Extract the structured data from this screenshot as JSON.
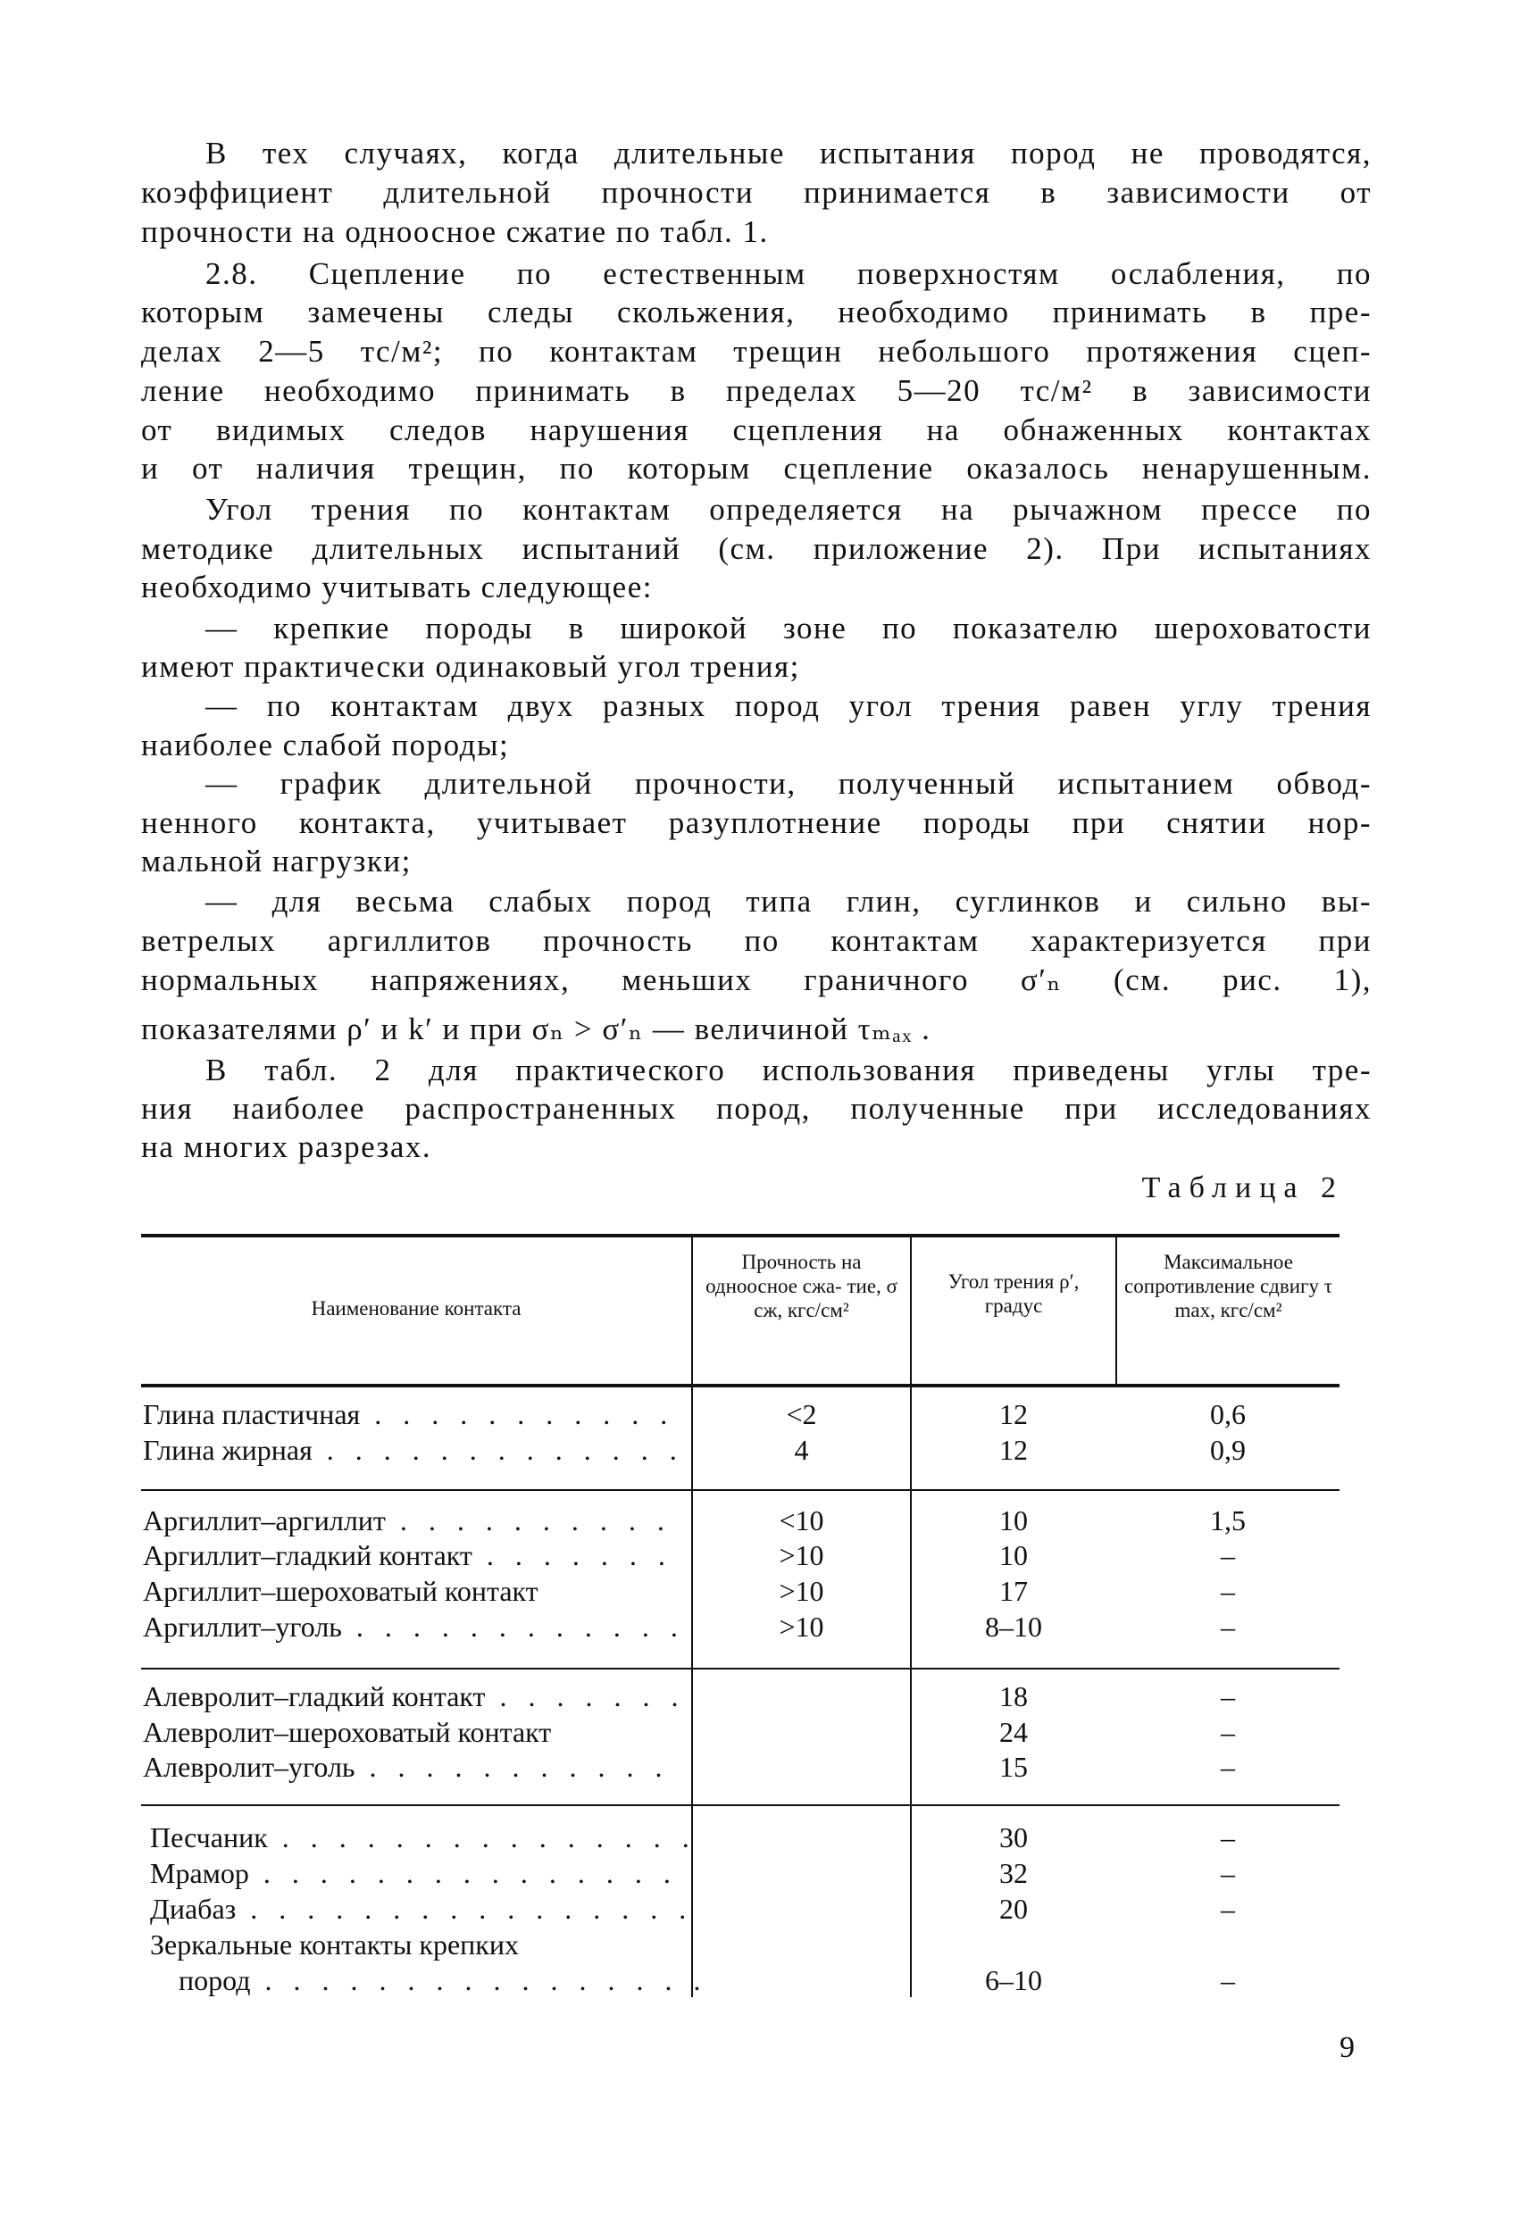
{
  "text": {
    "lines": [
      {
        "t": "В тех случаях, когда длительные испытания пород не проводятся,",
        "indent": true,
        "justify": true
      },
      {
        "t": "коэффициент длительной прочности принимается в зависимости от",
        "indent": false,
        "justify": true
      },
      {
        "t": "прочности на одноосное сжатие по табл. 1.",
        "indent": false,
        "justify": false
      },
      {
        "t": "2.8. Сцепление по естественным поверхностям ослабления, по",
        "indent": true,
        "justify": true
      },
      {
        "t": "которым замечены следы скольжения, необходимо принимать в пре-",
        "indent": false,
        "justify": true
      },
      {
        "t": "делах 2—5 тс/м²; по контактам трещин небольшого протяжения сцеп-",
        "indent": false,
        "justify": true
      },
      {
        "t": "ление необходимо принимать в пределах 5—20 тс/м² в зависимости",
        "indent": false,
        "justify": true
      },
      {
        "t": "от видимых следов нарушения сцепления на обнаженных контактах",
        "indent": false,
        "justify": true
      },
      {
        "t": "и от наличия трещин, по которым сцепление оказалось ненарушенным.",
        "indent": false,
        "justify": true
      },
      {
        "t": "Угол трения по контактам определяется на рычажном прессе по",
        "indent": true,
        "justify": true
      },
      {
        "t": "методике длительных испытаний (см. приложение 2). При испытаниях",
        "indent": false,
        "justify": true
      },
      {
        "t": "необходимо учитывать следующее:",
        "indent": false,
        "justify": false
      },
      {
        "t": "— крепкие породы в широкой зоне по показателю шероховатости",
        "indent": true,
        "justify": true
      },
      {
        "t": "имеют практически одинаковый угол трения;",
        "indent": false,
        "justify": false
      },
      {
        "t": "— по контактам двух разных пород угол трения равен углу трения",
        "indent": true,
        "justify": true
      },
      {
        "t": "наиболее слабой породы;",
        "indent": false,
        "justify": false
      },
      {
        "t": "— график длительной прочности, полученный испытанием обвод-",
        "indent": true,
        "justify": true
      },
      {
        "t": "ненного контакта, учитывает разуплотнение породы при снятии нор-",
        "indent": false,
        "justify": true
      },
      {
        "t": "мальной нагрузки;",
        "indent": false,
        "justify": false
      },
      {
        "t": "— для весьма слабых пород типа глин, суглинков и сильно вы-",
        "indent": true,
        "justify": true
      },
      {
        "t": "ветрелых аргиллитов прочность по контактам характеризуется при",
        "indent": false,
        "justify": true
      },
      {
        "t": "нормальных напряжениях, меньших граничного σ′ₙ (см. рис. 1),",
        "indent": false,
        "justify": true
      },
      {
        "t": "показателями ρ′ и k′ и при σₙ > σ′ₙ — величиной τₘₐₓ .",
        "indent": false,
        "justify": false
      },
      {
        "t": "В табл. 2 для практического использования приведены углы тре-",
        "indent": true,
        "justify": true
      },
      {
        "t": "ния наиболее распространенных пород, полученные при исследованиях",
        "indent": false,
        "justify": true
      },
      {
        "t": "на многих разрезах.",
        "indent": false,
        "justify": false
      }
    ]
  },
  "table": {
    "caption": "Таблица 2",
    "headers": {
      "name": "Наименование контакта",
      "strength": "Прочность на одноосное сжа- тие, σ сж, кгс/см²",
      "angle": "Угол трения ρ′, градус",
      "shear": "Максимальное сопротивление сдвигу τ max, кгс/см²"
    },
    "rows": [
      {
        "name": "Глина пластичная",
        "strength": "<2",
        "angle": "12",
        "shear": "0,6"
      },
      {
        "name": "Глина жирная",
        "strength": "4",
        "angle": "12",
        "shear": "0,9"
      },
      {
        "name": "Аргиллит–аргиллит",
        "strength": "<10",
        "angle": "10",
        "shear": "1,5"
      },
      {
        "name": "Аргиллит–гладкий контакт",
        "strength": ">10",
        "angle": "10",
        "shear": "–"
      },
      {
        "name": "Аргиллит–шероховатый контакт",
        "strength": ">10",
        "angle": "17",
        "shear": "–"
      },
      {
        "name": "Аргиллит–уголь",
        "strength": ">10",
        "angle": "8–10",
        "shear": "–"
      },
      {
        "name": "Алевролит–гладкий контакт",
        "strength": "",
        "angle": "18",
        "shear": "–"
      },
      {
        "name": "Алевролит–шероховатый контакт",
        "strength": "",
        "angle": "24",
        "shear": "–"
      },
      {
        "name": "Алевролит–уголь",
        "strength": "",
        "angle": "15",
        "shear": "–"
      },
      {
        "name": "Песчаник",
        "strength": "",
        "angle": "30",
        "shear": "–"
      },
      {
        "name": "Мрамор",
        "strength": "",
        "angle": "32",
        "shear": "–"
      },
      {
        "name": "Диабаз",
        "strength": "",
        "angle": "20",
        "shear": "–"
      },
      {
        "name": "Зеркальные контакты крепких",
        "strength": "",
        "angle": "",
        "shear": ""
      },
      {
        "name": "пород",
        "strength": "",
        "angle": "6–10",
        "shear": "–"
      }
    ]
  },
  "page_number": "9"
}
